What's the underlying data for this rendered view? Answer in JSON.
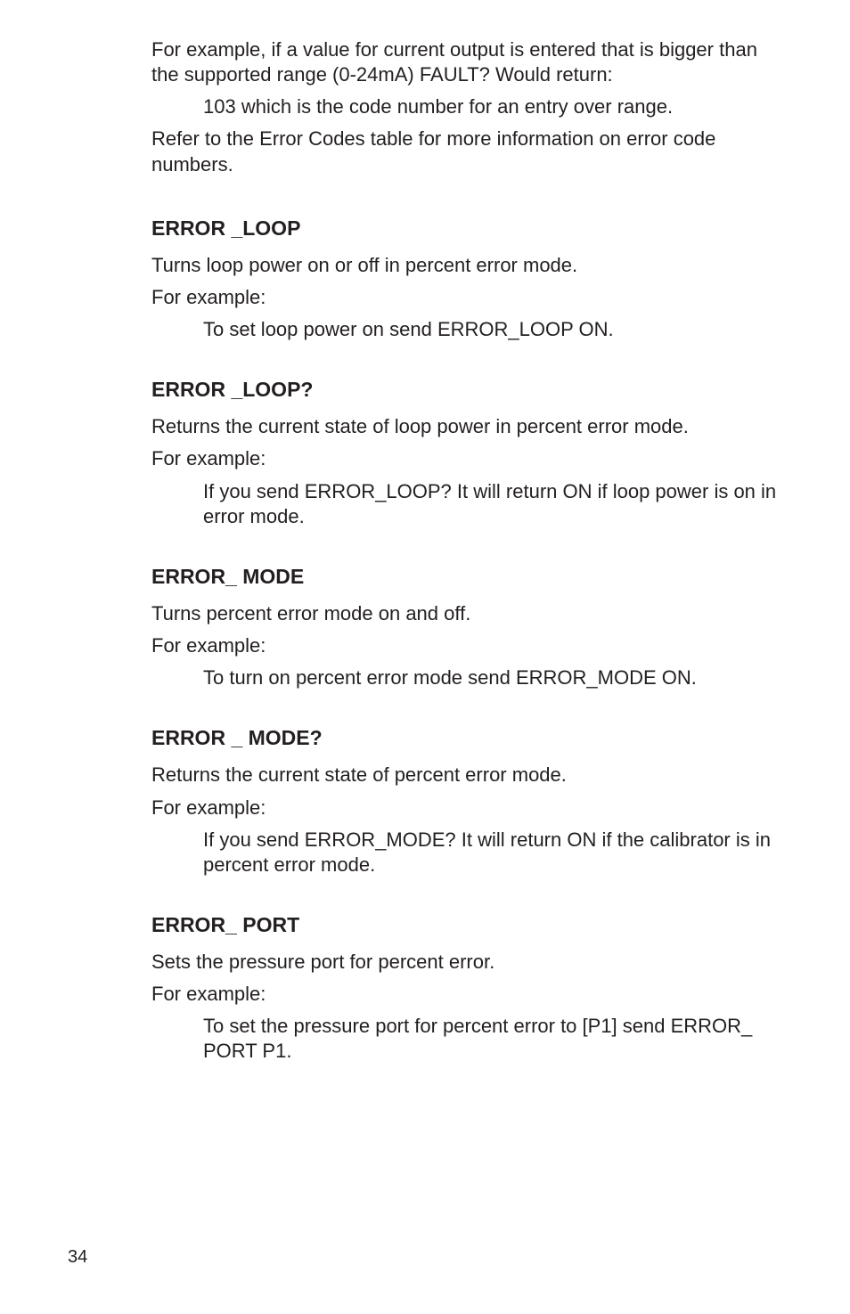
{
  "intro": {
    "p1": "For example, if a value for current output is entered that is bigger than the supported range (0-24mA) FAULT? Would return:",
    "p2": "103 which is the code number for an entry over range.",
    "p3": "Refer to the Error Codes table for more information on error code numbers."
  },
  "sections": {
    "error_loop": {
      "title": "ERROR _LOOP",
      "l1": "Turns loop power on or off in percent error mode.",
      "l2": "For example:",
      "l3": "To set loop power on send ERROR_LOOP ON."
    },
    "error_loop_q": {
      "title": "ERROR _LOOP?",
      "l1": "Returns the current state of loop power in percent error mode.",
      "l2": "For example:",
      "l3": "If you send ERROR_LOOP? It will return ON if loop power is on in error mode."
    },
    "error_mode": {
      "title": "ERROR_ MODE",
      "l1": "Turns percent error mode on and off.",
      "l2": "For example:",
      "l3": "To turn on percent error mode send ERROR_MODE ON."
    },
    "error_mode_q": {
      "title": "ERROR _ MODE?",
      "l1": "Returns the current state of percent error mode.",
      "l2": "For example:",
      "l3": "If you send ERROR_MODE? It will return ON if the calibrator is in percent error mode."
    },
    "error_port": {
      "title": "ERROR_ PORT",
      "l1": "Sets the pressure port for percent error.",
      "l2": "For example:",
      "l3": "To set the pressure port for percent error to [P1] send ERROR_ PORT P1."
    }
  },
  "page_number": "34"
}
